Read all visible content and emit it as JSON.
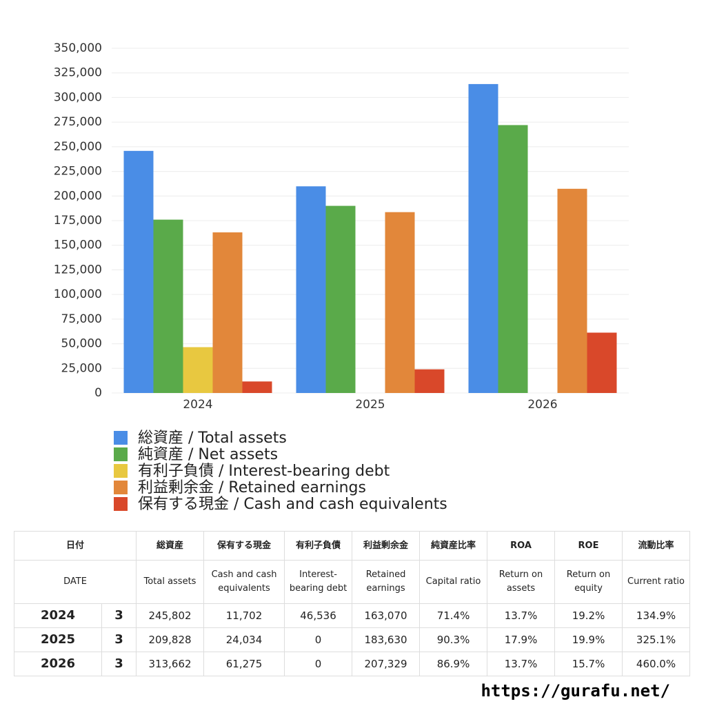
{
  "chart_data": {
    "type": "bar",
    "categories": [
      "2024",
      "2025",
      "2026"
    ],
    "series": [
      {
        "name": "総資産 / Total assets",
        "color": "#4a8de6",
        "values": [
          245802,
          209828,
          313662
        ]
      },
      {
        "name": "純資産 / Net assets",
        "color": "#5aaa4a",
        "values": [
          176000,
          190000,
          272000
        ]
      },
      {
        "name": "有利子負債 / Interest-bearing debt",
        "color": "#e8c840",
        "values": [
          46536,
          0,
          0
        ]
      },
      {
        "name": "利益剰余金 / Retained earnings",
        "color": "#e2873a",
        "values": [
          163070,
          183630,
          207329
        ]
      },
      {
        "name": "保有する現金 /  Cash and cash equivalents",
        "color": "#d9482a",
        "values": [
          11702,
          24034,
          61275
        ]
      }
    ],
    "ylim": [
      0,
      350000
    ],
    "yticks": [
      0,
      {
        "value": 25000,
        "label": "25,000"
      },
      {
        "value": 50000,
        "label": "50,000"
      },
      {
        "value": 75000,
        "label": "75,000"
      },
      {
        "value": 100000,
        "label": "100,000"
      },
      {
        "value": 125000,
        "label": "125,000"
      },
      {
        "value": 150000,
        "label": "150,000"
      },
      {
        "value": 175000,
        "label": "175,000"
      },
      {
        "value": 200000,
        "label": "200,000"
      },
      {
        "value": 225000,
        "label": "225,000"
      },
      {
        "value": 250000,
        "label": "250,000"
      },
      {
        "value": 275000,
        "label": "275,000"
      },
      {
        "value": 300000,
        "label": "300,000"
      },
      {
        "value": 325000,
        "label": "325,000"
      },
      {
        "value": 350000,
        "label": "350,000"
      }
    ],
    "grid": true
  },
  "table": {
    "header1": [
      "日付",
      "総資産",
      "保有する現金",
      "有利子負債",
      "利益剰余金",
      "純資産比率",
      "ROA",
      "ROE",
      "流動比率"
    ],
    "header2": [
      "DATE",
      "Total assets",
      "Cash and cash equivalents",
      "Interest-bearing debt",
      "Retained earnings",
      "Capital ratio",
      "Return on assets",
      "Return on equity",
      "Current ratio"
    ],
    "rows": [
      [
        "2024",
        "3",
        "245,802",
        "11,702",
        "46,536",
        "163,070",
        "71.4%",
        "13.7%",
        "19.2%",
        "134.9%"
      ],
      [
        "2025",
        "3",
        "209,828",
        "24,034",
        "0",
        "183,630",
        "90.3%",
        "17.9%",
        "19.9%",
        "325.1%"
      ],
      [
        "2026",
        "3",
        "313,662",
        "61,275",
        "0",
        "207,329",
        "86.9%",
        "13.7%",
        "15.7%",
        "460.0%"
      ]
    ]
  },
  "footer": "https://gurafu.net/"
}
